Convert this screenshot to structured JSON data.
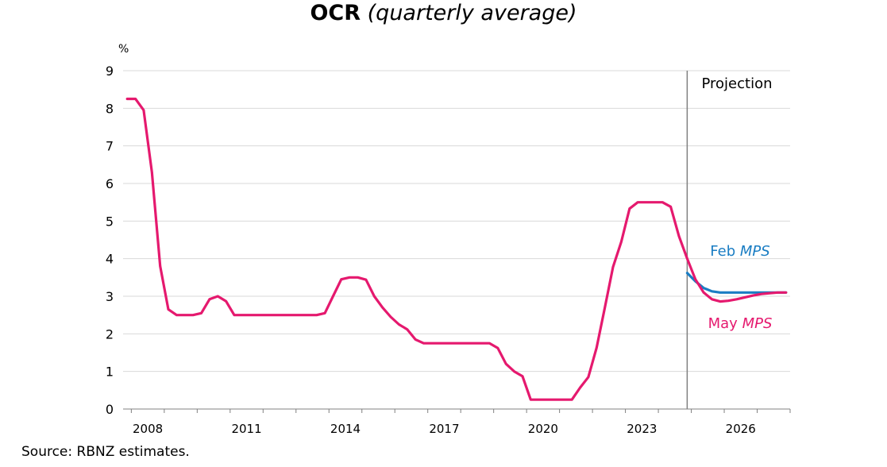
{
  "chart_data": {
    "type": "line",
    "title": "OCR",
    "subtitle": "(quarterly average)",
    "ylabel": "%",
    "xlabel": "",
    "ylim": [
      0,
      9
    ],
    "yticks": [
      0,
      1,
      2,
      3,
      4,
      5,
      6,
      7,
      8,
      9
    ],
    "xlim": [
      2007.75,
      2028.0
    ],
    "xticks": [
      2008,
      2011,
      2014,
      2017,
      2020,
      2023,
      2026
    ],
    "grid": true,
    "projection_start": 2024.875,
    "projection_label": "Projection",
    "series": [
      {
        "name": "May MPS",
        "label_main": "May",
        "label_italic": "MPS",
        "color": "#e5196e",
        "points": [
          [
            2007.875,
            8.25
          ],
          [
            2008.125,
            8.25
          ],
          [
            2008.375,
            7.95
          ],
          [
            2008.625,
            6.3
          ],
          [
            2008.875,
            3.8
          ],
          [
            2009.125,
            2.65
          ],
          [
            2009.375,
            2.5
          ],
          [
            2009.625,
            2.5
          ],
          [
            2009.875,
            2.5
          ],
          [
            2010.125,
            2.55
          ],
          [
            2010.375,
            2.92
          ],
          [
            2010.625,
            3.0
          ],
          [
            2010.875,
            2.87
          ],
          [
            2011.125,
            2.5
          ],
          [
            2011.375,
            2.5
          ],
          [
            2011.625,
            2.5
          ],
          [
            2011.875,
            2.5
          ],
          [
            2012.125,
            2.5
          ],
          [
            2012.375,
            2.5
          ],
          [
            2012.625,
            2.5
          ],
          [
            2012.875,
            2.5
          ],
          [
            2013.125,
            2.5
          ],
          [
            2013.375,
            2.5
          ],
          [
            2013.625,
            2.5
          ],
          [
            2013.875,
            2.55
          ],
          [
            2014.125,
            3.0
          ],
          [
            2014.375,
            3.45
          ],
          [
            2014.625,
            3.5
          ],
          [
            2014.875,
            3.5
          ],
          [
            2015.125,
            3.44
          ],
          [
            2015.375,
            3.0
          ],
          [
            2015.625,
            2.7
          ],
          [
            2015.875,
            2.45
          ],
          [
            2016.125,
            2.25
          ],
          [
            2016.375,
            2.12
          ],
          [
            2016.625,
            1.85
          ],
          [
            2016.875,
            1.75
          ],
          [
            2017.125,
            1.75
          ],
          [
            2017.375,
            1.75
          ],
          [
            2017.625,
            1.75
          ],
          [
            2017.875,
            1.75
          ],
          [
            2018.125,
            1.75
          ],
          [
            2018.375,
            1.75
          ],
          [
            2018.625,
            1.75
          ],
          [
            2018.875,
            1.75
          ],
          [
            2019.125,
            1.62
          ],
          [
            2019.375,
            1.2
          ],
          [
            2019.625,
            1.0
          ],
          [
            2019.875,
            0.87
          ],
          [
            2020.125,
            0.25
          ],
          [
            2020.375,
            0.25
          ],
          [
            2020.625,
            0.25
          ],
          [
            2020.875,
            0.25
          ],
          [
            2021.125,
            0.25
          ],
          [
            2021.375,
            0.25
          ],
          [
            2021.625,
            0.57
          ],
          [
            2021.875,
            0.85
          ],
          [
            2022.125,
            1.63
          ],
          [
            2022.375,
            2.7
          ],
          [
            2022.625,
            3.78
          ],
          [
            2022.875,
            4.45
          ],
          [
            2023.125,
            5.33
          ],
          [
            2023.375,
            5.5
          ],
          [
            2023.625,
            5.5
          ],
          [
            2023.875,
            5.5
          ],
          [
            2024.125,
            5.5
          ],
          [
            2024.375,
            5.38
          ],
          [
            2024.625,
            4.6
          ],
          [
            2024.875,
            4.0
          ],
          [
            2025.125,
            3.45
          ],
          [
            2025.375,
            3.1
          ],
          [
            2025.625,
            2.92
          ],
          [
            2025.875,
            2.86
          ],
          [
            2026.125,
            2.88
          ],
          [
            2026.375,
            2.92
          ],
          [
            2026.625,
            2.97
          ],
          [
            2026.875,
            3.02
          ],
          [
            2027.125,
            3.06
          ],
          [
            2027.375,
            3.08
          ],
          [
            2027.625,
            3.1
          ],
          [
            2027.875,
            3.1
          ]
        ]
      },
      {
        "name": "Feb MPS",
        "label_main": "Feb",
        "label_italic": "MPS",
        "color": "#1a7dc3",
        "points": [
          [
            2024.875,
            3.62
          ],
          [
            2025.125,
            3.4
          ],
          [
            2025.375,
            3.22
          ],
          [
            2025.625,
            3.13
          ],
          [
            2025.875,
            3.1
          ],
          [
            2026.125,
            3.1
          ],
          [
            2026.375,
            3.1
          ],
          [
            2026.625,
            3.1
          ],
          [
            2026.875,
            3.1
          ],
          [
            2027.125,
            3.1
          ],
          [
            2027.375,
            3.1
          ],
          [
            2027.625,
            3.1
          ],
          [
            2027.875,
            3.1
          ]
        ]
      }
    ]
  },
  "source": "Source: RBNZ estimates."
}
